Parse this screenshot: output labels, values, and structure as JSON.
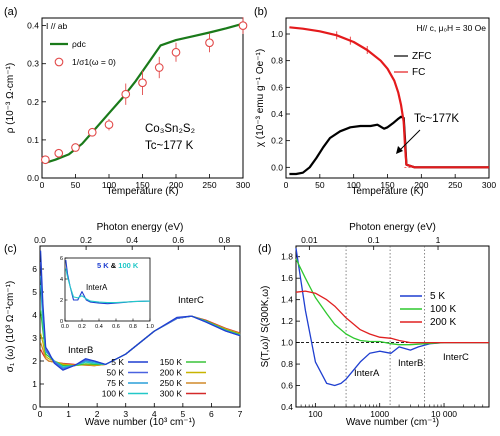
{
  "chart_data": [
    {
      "type": "line",
      "panel_label": "(a)",
      "condition": "I // ab",
      "xlabel": "Temperature (K)",
      "ylabel": "ρ (10⁻³ Ω·cm⁻¹)",
      "xlim": [
        0,
        300
      ],
      "ylim": [
        0,
        0.42
      ],
      "xticks": [
        0,
        50,
        100,
        150,
        200,
        250,
        300
      ],
      "yticks": [
        0,
        0.1,
        0.2,
        0.3,
        0.4
      ],
      "annotation_material": "Co₃Sn₂S₂",
      "annotation_tc": "Tc~177 K",
      "series": [
        {
          "name": "ρdc",
          "style": "line",
          "color": "#1a7a1a",
          "x": [
            5,
            20,
            40,
            60,
            80,
            100,
            120,
            140,
            160,
            177,
            200,
            225,
            250,
            275,
            300
          ],
          "y": [
            0.04,
            0.048,
            0.062,
            0.09,
            0.13,
            0.17,
            0.21,
            0.255,
            0.305,
            0.348,
            0.362,
            0.372,
            0.382,
            0.393,
            0.405
          ]
        },
        {
          "name": "1/σ1(ω = 0)",
          "style": "markers",
          "color": "#e24a4a",
          "x": [
            5,
            25,
            50,
            75,
            100,
            125,
            150,
            175,
            200,
            250,
            300
          ],
          "y": [
            0.048,
            0.065,
            0.08,
            0.12,
            0.14,
            0.22,
            0.25,
            0.29,
            0.33,
            0.355,
            0.4
          ],
          "err": [
            0.008,
            0.008,
            0.008,
            0.01,
            0.015,
            0.028,
            0.032,
            0.028,
            0.025,
            0.025,
            0.022
          ]
        }
      ]
    },
    {
      "type": "line",
      "panel_label": "(b)",
      "condition": "H// c, μ₀H = 30 Oe",
      "xlabel": "Temperature (K)",
      "ylabel": "χ (10⁻³ emu g⁻¹ Oe⁻¹)",
      "xlim": [
        0,
        300
      ],
      "ylim": [
        -0.08,
        1.12
      ],
      "xticks": [
        0,
        50,
        100,
        150,
        200,
        250,
        300
      ],
      "yticks": [
        0.0,
        0.2,
        0.4,
        0.6,
        0.8,
        1.0
      ],
      "annotation_tc": "Tc~177K",
      "series": [
        {
          "name": "ZFC",
          "color": "#000000",
          "x": [
            5,
            15,
            25,
            35,
            45,
            55,
            65,
            80,
            95,
            110,
            125,
            135,
            145,
            150,
            158,
            165,
            170,
            174,
            176,
            178,
            190,
            220,
            260,
            300
          ],
          "y": [
            -0.05,
            -0.05,
            -0.04,
            0.0,
            0.07,
            0.15,
            0.22,
            0.27,
            0.3,
            0.31,
            0.31,
            0.32,
            0.29,
            0.3,
            0.33,
            0.36,
            0.38,
            0.37,
            0.2,
            0.02,
            0.0,
            0.0,
            0.0,
            0.0
          ]
        },
        {
          "name": "FC",
          "color": "#e41a1c",
          "x": [
            5,
            25,
            50,
            75,
            100,
            120,
            140,
            150,
            160,
            166,
            170,
            174,
            176,
            178,
            190,
            220,
            260,
            300
          ],
          "y": [
            1.05,
            1.04,
            1.02,
            0.99,
            0.94,
            0.88,
            0.8,
            0.74,
            0.65,
            0.56,
            0.47,
            0.34,
            0.15,
            0.02,
            0.0,
            0.0,
            0.0,
            0.0
          ]
        }
      ]
    },
    {
      "type": "line",
      "panel_label": "(c)",
      "xlabel": "Wave number (10³ cm⁻¹)",
      "ylabel": "σ₁ (ω) (10³ Ω⁻¹cm⁻¹)",
      "top_xlabel": "Photon energy (eV)",
      "xlim": [
        0,
        7
      ],
      "ylim": [
        0,
        7
      ],
      "xticks": [
        0,
        1,
        2,
        3,
        4,
        5,
        6,
        7
      ],
      "yticks": [
        0,
        1,
        2,
        3,
        4,
        5,
        6
      ],
      "top_xticks": [
        0.0,
        0.2,
        0.4,
        0.6,
        0.8
      ],
      "annotations": [
        "InterB",
        "InterC"
      ],
      "series": [
        {
          "name": "5 K",
          "color": "#1f3fd0",
          "x": [
            0.02,
            0.1,
            0.2,
            0.3,
            0.5,
            0.8,
            1.2,
            1.6,
            1.9,
            2.3,
            3,
            4,
            4.8,
            5.3,
            5.8,
            6.5,
            7
          ],
          "y": [
            6.8,
            4.5,
            2.6,
            2.4,
            1.9,
            1.6,
            1.8,
            2.1,
            2.0,
            1.85,
            2.3,
            3.3,
            3.9,
            3.95,
            3.7,
            3.3,
            3.1
          ]
        },
        {
          "name": "50 K",
          "color": "#4a62e0",
          "x": [
            0.02,
            0.1,
            0.2,
            0.3,
            0.5,
            0.8,
            1.2,
            1.6,
            1.9,
            2.3,
            3,
            4,
            4.8,
            5.3,
            5.8,
            6.5,
            7
          ],
          "y": [
            6.3,
            4.3,
            2.5,
            2.3,
            1.95,
            1.65,
            1.8,
            2.05,
            2.0,
            1.85,
            2.3,
            3.3,
            3.85,
            3.95,
            3.7,
            3.3,
            3.1
          ]
        },
        {
          "name": "75 K",
          "color": "#2a9fd8",
          "x": [
            0.02,
            0.1,
            0.2,
            0.3,
            0.5,
            0.8,
            1.2,
            1.6,
            1.9,
            2.3,
            3,
            4,
            4.8,
            5.3,
            5.8,
            6.5,
            7
          ],
          "y": [
            5.7,
            4.0,
            2.5,
            2.3,
            2.0,
            1.7,
            1.8,
            2.0,
            1.95,
            1.85,
            2.3,
            3.3,
            3.85,
            3.95,
            3.72,
            3.32,
            3.12
          ]
        },
        {
          "name": "100 K",
          "color": "#22c8c8",
          "x": [
            0.02,
            0.1,
            0.2,
            0.3,
            0.5,
            0.8,
            1.2,
            1.6,
            1.9,
            2.3,
            3,
            4,
            4.8,
            5.3,
            5.8,
            6.5,
            7
          ],
          "y": [
            5.3,
            3.7,
            2.4,
            2.3,
            2.0,
            1.75,
            1.8,
            1.95,
            1.9,
            1.85,
            2.3,
            3.3,
            3.85,
            3.95,
            3.72,
            3.32,
            3.12
          ]
        },
        {
          "name": "150 K",
          "color": "#3ac33a",
          "x": [
            0.02,
            0.1,
            0.2,
            0.3,
            0.5,
            0.8,
            1.2,
            1.6,
            1.9,
            2.3,
            3,
            4,
            4.8,
            5.3,
            5.8,
            6.5,
            7
          ],
          "y": [
            4.2,
            3.3,
            2.3,
            2.2,
            2.0,
            1.8,
            1.8,
            1.88,
            1.85,
            1.85,
            2.3,
            3.3,
            3.85,
            3.95,
            3.75,
            3.35,
            3.15
          ]
        },
        {
          "name": "200 K",
          "color": "#c8b400",
          "x": [
            0.02,
            0.1,
            0.2,
            0.3,
            0.5,
            0.8,
            1.2,
            1.6,
            1.9,
            2.3,
            3,
            4,
            4.8,
            5.3,
            5.8,
            6.5,
            7
          ],
          "y": [
            3.2,
            2.8,
            2.2,
            2.1,
            2.0,
            1.85,
            1.8,
            1.85,
            1.82,
            1.85,
            2.3,
            3.3,
            3.85,
            3.95,
            3.75,
            3.38,
            3.18
          ]
        },
        {
          "name": "250 K",
          "color": "#d08a2a",
          "x": [
            0.02,
            0.1,
            0.2,
            0.3,
            0.5,
            0.8,
            1.2,
            1.6,
            1.9,
            2.3,
            3,
            4,
            4.8,
            5.3,
            5.8,
            6.5,
            7
          ],
          "y": [
            2.8,
            2.5,
            2.1,
            2.0,
            1.95,
            1.88,
            1.82,
            1.83,
            1.8,
            1.85,
            2.3,
            3.3,
            3.85,
            3.95,
            3.75,
            3.4,
            3.2
          ]
        },
        {
          "name": "300 K",
          "color": "#d42a2a",
          "x": [
            0.02,
            0.1,
            0.2,
            0.3,
            0.5,
            0.8,
            1.2,
            1.6,
            1.9,
            2.3,
            3,
            4,
            4.8,
            5.3,
            5.8,
            6.5,
            7
          ],
          "y": [
            2.5,
            2.3,
            2.1,
            2.0,
            1.95,
            1.9,
            1.85,
            1.82,
            1.8,
            1.85,
            2.3,
            3.3,
            3.85,
            3.95,
            3.78,
            3.42,
            3.22
          ]
        }
      ],
      "inset": {
        "legend": "5 K & 100 K",
        "annotation": "InterA",
        "xlim": [
          0,
          1.0
        ],
        "ylim": [
          0,
          6
        ],
        "xticks": [
          0.0,
          0.2,
          0.4,
          0.6,
          0.8,
          1.0
        ],
        "yticks": [
          0,
          2,
          4,
          6
        ],
        "series": [
          {
            "name": "5 K",
            "color": "#1f3fd0",
            "x": [
              0.01,
              0.03,
              0.06,
              0.1,
              0.15,
              0.2,
              0.25,
              0.3,
              0.4,
              0.5,
              0.6,
              0.8,
              1.0
            ],
            "y": [
              5.8,
              4.5,
              3.3,
              2.0,
              2.0,
              2.8,
              2.0,
              1.8,
              1.7,
              1.65,
              1.7,
              1.85,
              1.9
            ]
          },
          {
            "name": "100 K",
            "color": "#22c8c8",
            "x": [
              0.01,
              0.03,
              0.06,
              0.1,
              0.15,
              0.2,
              0.25,
              0.3,
              0.4,
              0.5,
              0.6,
              0.8,
              1.0
            ],
            "y": [
              5.0,
              4.2,
              3.3,
              2.3,
              2.2,
              2.4,
              2.1,
              1.9,
              1.8,
              1.75,
              1.75,
              1.85,
              1.9
            ]
          }
        ]
      }
    },
    {
      "type": "line",
      "panel_label": "(d)",
      "xlabel": "Wave number (cm⁻¹)",
      "ylabel": "S(T,ω)/ S(300K,ω)",
      "top_xlabel": "Photon energy (eV)",
      "xscale": "log",
      "xlim": [
        50,
        50000
      ],
      "ylim": [
        0.4,
        1.9
      ],
      "xticks": [
        100,
        1000,
        10000
      ],
      "xticklabels": [
        "100",
        "1000",
        "10 000"
      ],
      "yticks": [
        0.4,
        0.6,
        0.8,
        1.0,
        1.2,
        1.4,
        1.6,
        1.8
      ],
      "top_xticks": [
        "0.01",
        "0.1",
        "1"
      ],
      "annotations": [
        "InterA",
        "InterB",
        "InterC"
      ],
      "series": [
        {
          "name": "5 K",
          "color": "#1f3fd0",
          "x": [
            50,
            70,
            100,
            150,
            200,
            250,
            300,
            400,
            500,
            700,
            1000,
            1500,
            2000,
            3000,
            4000,
            6000,
            10000,
            20000,
            50000
          ],
          "y": [
            1.88,
            1.3,
            0.82,
            0.62,
            0.6,
            0.62,
            0.66,
            0.75,
            0.82,
            0.9,
            0.92,
            0.9,
            0.96,
            0.93,
            0.96,
            0.99,
            1.0,
            1.0,
            1.0
          ]
        },
        {
          "name": "100 K",
          "color": "#2fc82f",
          "x": [
            50,
            70,
            100,
            150,
            200,
            300,
            400,
            500,
            700,
            1000,
            1500,
            2000,
            3000,
            5000,
            10000,
            50000
          ],
          "y": [
            1.78,
            1.6,
            1.42,
            1.27,
            1.17,
            1.08,
            1.04,
            1.02,
            1.01,
            1.01,
            0.99,
            0.98,
            0.98,
            0.99,
            1.0,
            1.0
          ]
        },
        {
          "name": "200 K",
          "color": "#e02020",
          "x": [
            50,
            70,
            100,
            150,
            200,
            300,
            500,
            700,
            1000,
            1500,
            2000,
            3000,
            5000,
            10000,
            50000
          ],
          "y": [
            1.47,
            1.48,
            1.46,
            1.4,
            1.34,
            1.23,
            1.12,
            1.08,
            1.05,
            1.04,
            1.02,
            1.0,
            1.0,
            1.0,
            1.0
          ]
        }
      ]
    }
  ]
}
